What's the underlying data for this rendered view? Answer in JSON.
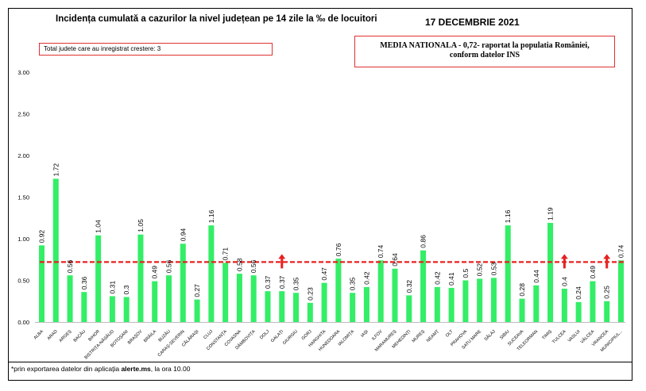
{
  "title": "Incidența cumulată a cazurilor la nivel județean pe 14 zile la ‰ de locuitori",
  "date": "17 DECEMBRIE 2021",
  "counties_box": "Total judete care au inregistrat crestere: 3",
  "national_box": {
    "line1": "MEDIA NATIONALA - 0,72-  raportat la populatia României,",
    "line2": "conform datelor INS"
  },
  "footnote": {
    "prefix": "*prin exportarea datelor din aplicația ",
    "source": "alerte.ms",
    "suffix": ", la ora 10.00"
  },
  "colors": {
    "bar": "#33ee66",
    "average_line": "#e82020",
    "increase_arrow": "#e82020"
  },
  "chart_data": {
    "type": "bar",
    "categories": [
      "ALBA",
      "ARAD",
      "ARGEȘ",
      "BACĂU",
      "BIHOR",
      "BISTRIȚA-NĂSĂUD",
      "BOTOȘANI",
      "BRAȘOV",
      "BRĂILA",
      "BUZĂU",
      "CARAȘ-SEVERIN",
      "CĂLĂRAȘI",
      "CLUJ",
      "CONSTANȚA",
      "COVASNA",
      "DÂMBOVIȚA",
      "DOLJ",
      "GALAȚI",
      "GIURGIU",
      "GORJ",
      "HARGHITA",
      "HUNEDOARA",
      "IALOMIȚA",
      "IAȘI",
      "ILFOV",
      "MARAMUREȘ",
      "MEHEDINȚI",
      "MUREȘ",
      "NEAMȚ",
      "OLT",
      "PRAHOVA",
      "SATU MARE",
      "SĂLAJ",
      "SIBIU",
      "SUCEAVA",
      "TELEORMAN",
      "TIMIȘ",
      "TULCEA",
      "VASLUI",
      "VÂLCEA",
      "VRANCEA",
      "MUNICIPIUL..."
    ],
    "values": [
      0.92,
      1.72,
      0.56,
      0.36,
      1.04,
      0.31,
      0.3,
      1.05,
      0.49,
      0.56,
      0.94,
      0.27,
      1.16,
      0.71,
      0.58,
      0.56,
      0.37,
      0.37,
      0.35,
      0.23,
      0.47,
      0.76,
      0.35,
      0.42,
      0.74,
      0.64,
      0.32,
      0.86,
      0.42,
      0.41,
      0.5,
      0.52,
      0.53,
      1.16,
      0.28,
      0.44,
      1.19,
      0.4,
      0.24,
      0.49,
      0.25,
      0.74
    ],
    "data_labels": [
      "0.92",
      "1.72",
      "0.56",
      "0.36",
      "1.04",
      "0.31",
      "0.3",
      "1.05",
      "0.49",
      "0.56",
      "0.94",
      "0.27",
      "1.16",
      "0.71",
      "0.58",
      "0.56",
      "0.37",
      "0.37",
      "0.35",
      "0.23",
      "0.47",
      "0.76",
      "0.35",
      "0.42",
      "0.74",
      "0.64",
      "0.32",
      "0.86",
      "0.42",
      "0.41",
      "0.5",
      "0.52",
      "0.53",
      "1.16",
      "0.28",
      "0.44",
      "1.19",
      "0.4",
      "0.24",
      "0.49",
      "0.25",
      "0.74"
    ],
    "y_ticks": [
      "0.00",
      "0.50",
      "1.00",
      "1.50",
      "2.00",
      "2.50",
      "3.00"
    ],
    "ylim": [
      0,
      3
    ],
    "average_line": 0.72,
    "increase_markers": [
      "GALAȚI",
      "TULCEA",
      "VRANCEA"
    ],
    "grid": false
  }
}
